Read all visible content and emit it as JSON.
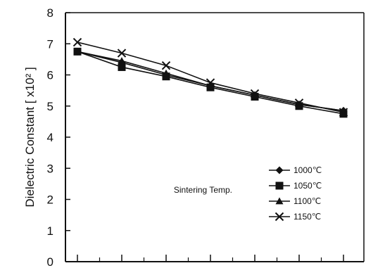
{
  "chart_data": {
    "type": "line",
    "title": "",
    "xlabel": "",
    "ylabel": "Dielectric Constant [ x10² ]",
    "ylim": [
      0,
      8
    ],
    "yticks": [
      "0",
      "1",
      "2",
      "3",
      "4",
      "5",
      "6",
      "7",
      "8"
    ],
    "grid": false,
    "legend_position": "bottom-right",
    "legend_title": "Sintering Temp.",
    "x": [
      1,
      2,
      3,
      4,
      5,
      6,
      7
    ],
    "series": [
      {
        "name": "1000℃",
        "marker": "diamond",
        "values": [
          6.75,
          6.4,
          6.0,
          5.65,
          5.35,
          5.05,
          4.85
        ]
      },
      {
        "name": "1050℃",
        "marker": "square",
        "values": [
          6.75,
          6.25,
          5.95,
          5.6,
          5.3,
          5.0,
          4.75
        ]
      },
      {
        "name": "1100℃",
        "marker": "triangle",
        "values": [
          6.75,
          6.45,
          6.05,
          5.65,
          5.35,
          5.05,
          4.85
        ]
      },
      {
        "name": "1150℃",
        "marker": "x",
        "values": [
          7.05,
          6.7,
          6.3,
          5.75,
          5.4,
          5.1,
          4.8
        ]
      }
    ],
    "colors": {
      "line": "#111111",
      "axis": "#111111",
      "background": "#ffffff"
    }
  }
}
